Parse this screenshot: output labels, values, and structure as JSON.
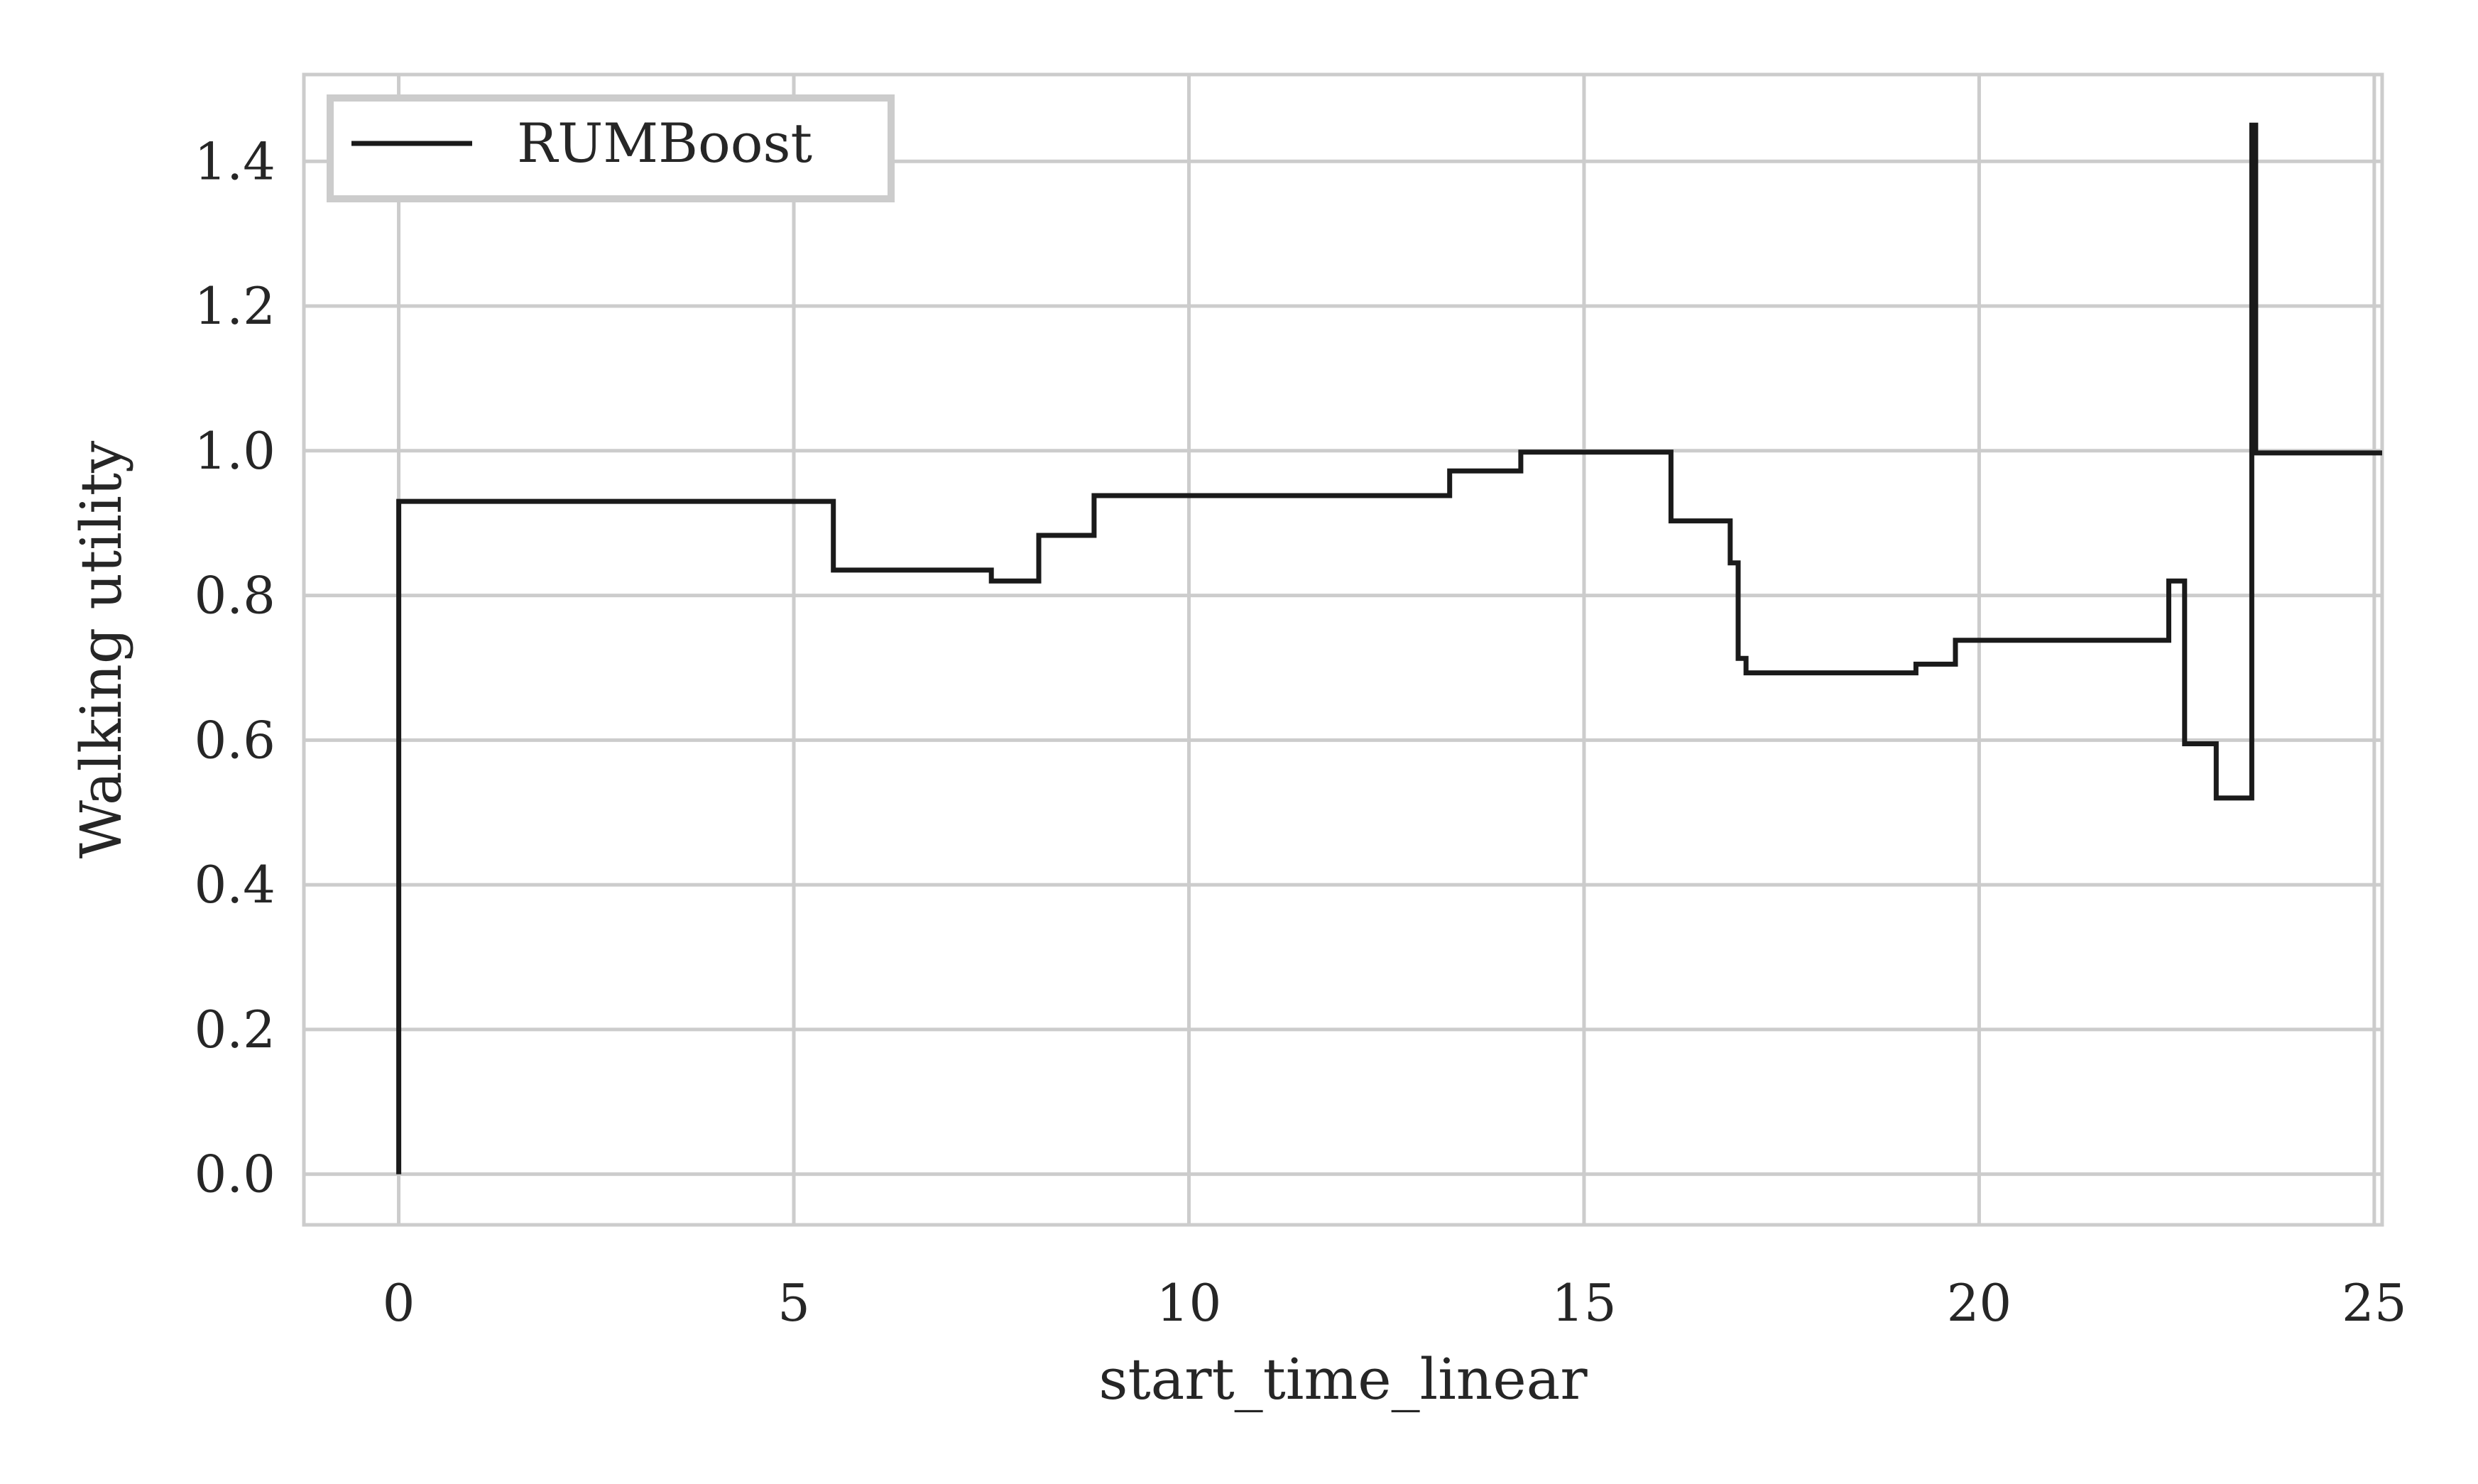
{
  "chart_data": {
    "type": "line",
    "style": "step",
    "xlabel": "start_time_linear",
    "ylabel": "Walking utility",
    "xlim": [
      -1.2,
      25.1
    ],
    "ylim": [
      -0.07,
      1.52
    ],
    "xticks": [
      0,
      5,
      10,
      15,
      20,
      25
    ],
    "xtick_labels": [
      "0",
      "5",
      "10",
      "15",
      "20",
      "25"
    ],
    "yticks": [
      0.0,
      0.2,
      0.4,
      0.6,
      0.8,
      1.0,
      1.2,
      1.4
    ],
    "ytick_labels": [
      "0.0",
      "0.2",
      "0.4",
      "0.6",
      "0.8",
      "1.0",
      "1.2",
      "1.4"
    ],
    "grid": true,
    "legend_position": "top-left",
    "colors": {
      "line": "#1a1a1a",
      "grid": "#cccccc",
      "frame": "#cccccc",
      "legend_border": "#cccccc"
    },
    "series": [
      {
        "name": "RUMBoost",
        "x": [
          0,
          0,
          5.5,
          5.5,
          7.5,
          7.5,
          8.1,
          8.1,
          8.8,
          8.8,
          13.3,
          13.3,
          14.2,
          14.2,
          16.1,
          16.1,
          16.85,
          16.85,
          16.95,
          16.95,
          17.05,
          17.05,
          19.2,
          19.2,
          19.7,
          19.7,
          22.4,
          22.4,
          22.6,
          22.6,
          23.0,
          23.0,
          23.45,
          23.45,
          23.5,
          23.5,
          25.1
        ],
        "y": [
          0.0,
          0.93,
          0.93,
          0.835,
          0.835,
          0.82,
          0.82,
          0.883,
          0.883,
          0.938,
          0.938,
          0.972,
          0.972,
          0.998,
          0.998,
          0.903,
          0.903,
          0.845,
          0.845,
          0.713,
          0.713,
          0.693,
          0.693,
          0.705,
          0.705,
          0.738,
          0.738,
          0.82,
          0.82,
          0.595,
          0.595,
          0.52,
          0.52,
          1.45,
          1.45,
          0.997,
          0.997
        ]
      }
    ]
  }
}
